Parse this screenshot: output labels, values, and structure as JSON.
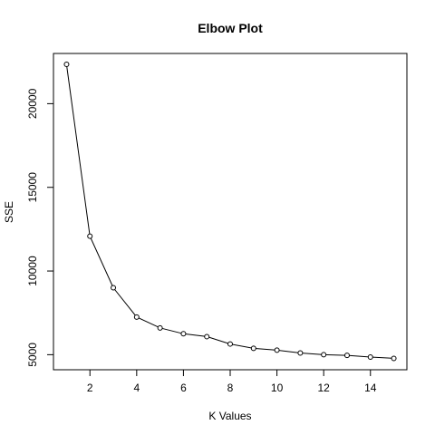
{
  "chart_data": {
    "type": "line",
    "title": "Elbow Plot",
    "xlabel": "K Values",
    "ylabel": "SSE",
    "xlim": [
      0.44,
      15.56
    ],
    "ylim": [
      4100,
      23000
    ],
    "x_ticks": [
      2,
      4,
      6,
      8,
      10,
      12,
      14
    ],
    "y_ticks": [
      5000,
      10000,
      15000,
      20000
    ],
    "grid": false,
    "series": [
      {
        "x": [
          1,
          2,
          3,
          4,
          5,
          6,
          7,
          8,
          9,
          10,
          11,
          12,
          13,
          14,
          15
        ],
        "values": [
          22350,
          12080,
          9000,
          7250,
          6600,
          6250,
          6080,
          5640,
          5380,
          5270,
          5100,
          5000,
          4960,
          4860,
          4780
        ]
      }
    ]
  },
  "colors": {
    "line": "#000000",
    "axis": "#000000",
    "background": "#ffffff"
  }
}
